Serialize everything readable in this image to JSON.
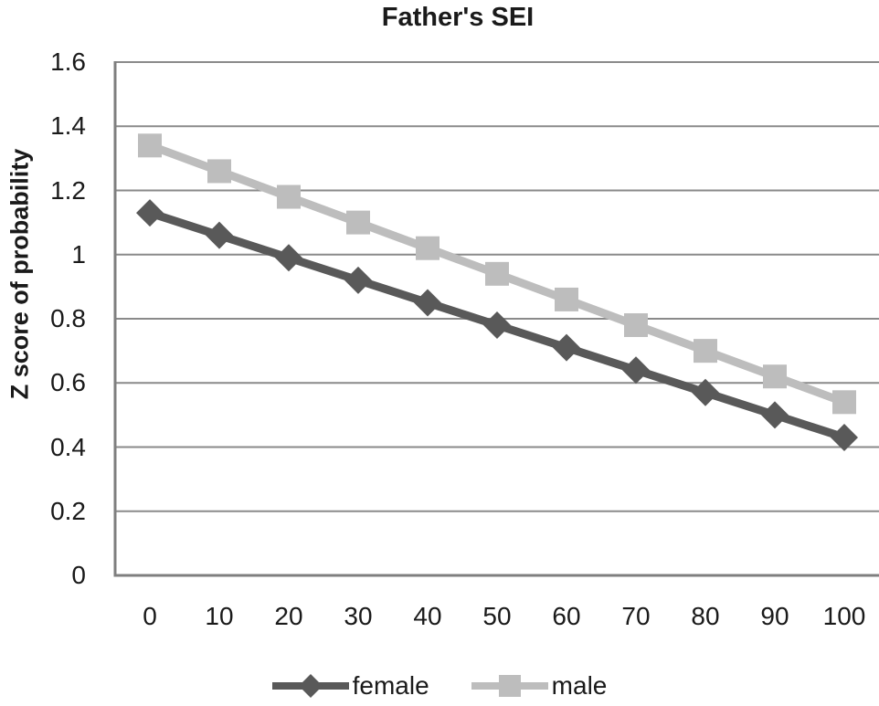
{
  "chart_data": {
    "type": "line",
    "title": "Father's SEI",
    "ylabel": "Z score of probability",
    "xlabel": "",
    "x": [
      0,
      10,
      20,
      30,
      40,
      50,
      60,
      70,
      80,
      90,
      100
    ],
    "x_tick_labels": [
      "0",
      "10",
      "20",
      "30",
      "40",
      "50",
      "60",
      "70",
      "80",
      "90",
      "100"
    ],
    "y_tick_labels": [
      "0",
      "0.2",
      "0.4",
      "0.6",
      "0.8",
      "1",
      "1.2",
      "1.4",
      "1.6"
    ],
    "y_tick_values": [
      0,
      0.2,
      0.4,
      0.6,
      0.8,
      1,
      1.2,
      1.4,
      1.6
    ],
    "ylim": [
      0,
      1.6
    ],
    "grid": "horizontal",
    "legend_position": "bottom",
    "series": [
      {
        "name": "female",
        "color": "#595959",
        "marker": "diamond",
        "values": [
          1.13,
          1.06,
          0.99,
          0.92,
          0.85,
          0.78,
          0.71,
          0.64,
          0.57,
          0.5,
          0.43
        ]
      },
      {
        "name": "male",
        "color": "#BDBDBD",
        "marker": "square",
        "values": [
          1.34,
          1.26,
          1.18,
          1.1,
          1.02,
          0.94,
          0.86,
          0.78,
          0.7,
          0.62,
          0.54
        ]
      }
    ],
    "colors": {
      "gridline": "#8A8A8A",
      "axis": "#7F7F7F",
      "tick_text": "#1A1A1A",
      "title_text": "#1A1A1A"
    }
  }
}
